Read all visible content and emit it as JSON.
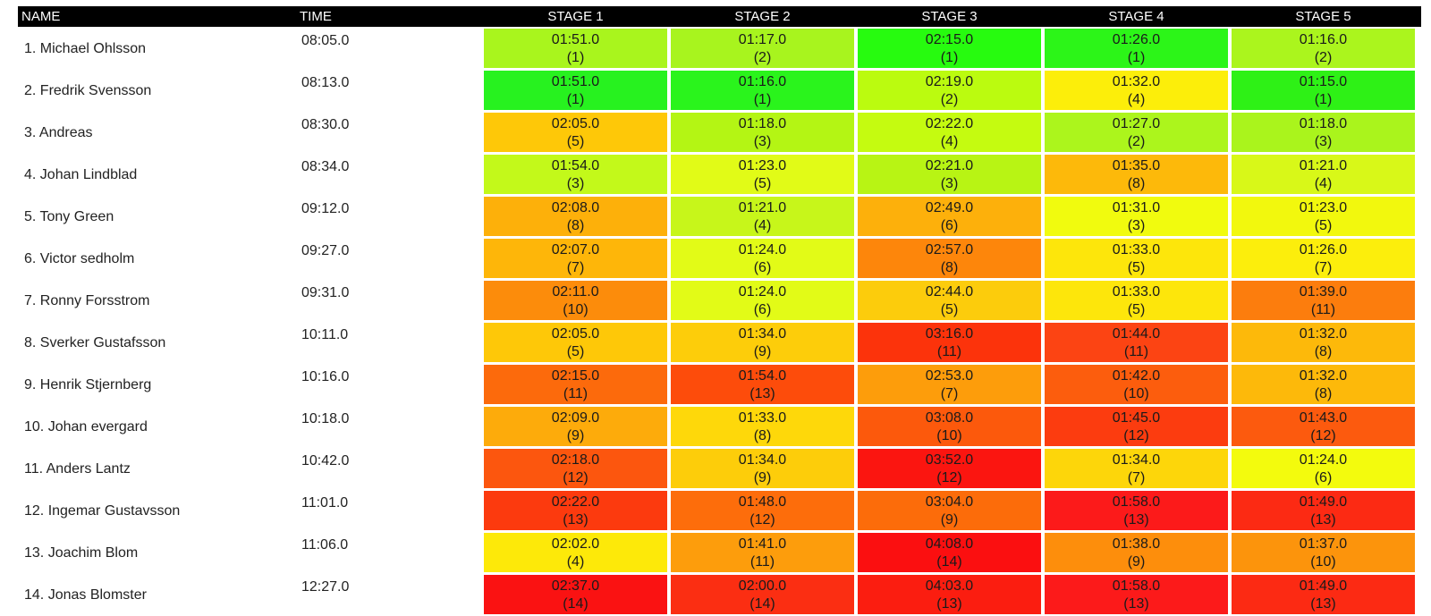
{
  "header": {
    "name": "NAME",
    "time": "TIME",
    "stages": [
      "STAGE 1",
      "STAGE 2",
      "STAGE 3",
      "STAGE 4",
      "STAGE 5"
    ]
  },
  "rows": [
    {
      "name": "1. Michael Ohlsson",
      "time": "08:05.0",
      "stages": [
        {
          "t": "01:51.0",
          "r": "(1)",
          "c": "#a9f51d"
        },
        {
          "t": "01:17.0",
          "r": "(2)",
          "c": "#a8f41e"
        },
        {
          "t": "02:15.0",
          "r": "(1)",
          "c": "#27fb0f"
        },
        {
          "t": "01:26.0",
          "r": "(1)",
          "c": "#2cf518"
        },
        {
          "t": "01:16.0",
          "r": "(2)",
          "c": "#abf51d"
        }
      ]
    },
    {
      "name": "2. Fredrik Svensson",
      "time": "08:13.0",
      "stages": [
        {
          "t": "01:51.0",
          "r": "(1)",
          "c": "#27f21f"
        },
        {
          "t": "01:16.0",
          "r": "(1)",
          "c": "#2af41c"
        },
        {
          "t": "02:19.0",
          "r": "(2)",
          "c": "#bbfb0f"
        },
        {
          "t": "01:32.0",
          "r": "(4)",
          "c": "#fcee0a"
        },
        {
          "t": "01:15.0",
          "r": "(1)",
          "c": "#2ef116"
        }
      ]
    },
    {
      "name": "3. Andreas",
      "time": "08:30.0",
      "stages": [
        {
          "t": "02:05.0",
          "r": "(5)",
          "c": "#fec808"
        },
        {
          "t": "01:18.0",
          "r": "(3)",
          "c": "#b4f514"
        },
        {
          "t": "02:22.0",
          "r": "(4)",
          "c": "#c5fb10"
        },
        {
          "t": "01:27.0",
          "r": "(2)",
          "c": "#acf51c"
        },
        {
          "t": "01:18.0",
          "r": "(3)",
          "c": "#aaf41c"
        }
      ]
    },
    {
      "name": "4. Johan Lindblad",
      "time": "08:34.0",
      "stages": [
        {
          "t": "01:54.0",
          "r": "(3)",
          "c": "#c3f91a"
        },
        {
          "t": "01:23.0",
          "r": "(5)",
          "c": "#e1fb17"
        },
        {
          "t": "02:21.0",
          "r": "(3)",
          "c": "#b8f414"
        },
        {
          "t": "01:35.0",
          "r": "(8)",
          "c": "#fdb90a"
        },
        {
          "t": "01:21.0",
          "r": "(4)",
          "c": "#d8f818"
        }
      ]
    },
    {
      "name": "5. Tony Green",
      "time": "09:12.0",
      "stages": [
        {
          "t": "02:08.0",
          "r": "(8)",
          "c": "#fdb00a"
        },
        {
          "t": "01:21.0",
          "r": "(4)",
          "c": "#c7f61a"
        },
        {
          "t": "02:49.0",
          "r": "(6)",
          "c": "#fdb00b"
        },
        {
          "t": "01:31.0",
          "r": "(3)",
          "c": "#f1fb0e"
        },
        {
          "t": "01:23.0",
          "r": "(5)",
          "c": "#f2f80d"
        }
      ]
    },
    {
      "name": "6. Victor sedholm",
      "time": "09:27.0",
      "stages": [
        {
          "t": "02:07.0",
          "r": "(7)",
          "c": "#feb609"
        },
        {
          "t": "01:24.0",
          "r": "(6)",
          "c": "#e2fb17"
        },
        {
          "t": "02:57.0",
          "r": "(8)",
          "c": "#fd860b"
        },
        {
          "t": "01:33.0",
          "r": "(5)",
          "c": "#fde60b"
        },
        {
          "t": "01:26.0",
          "r": "(7)",
          "c": "#fcee0c"
        }
      ]
    },
    {
      "name": "7. Ronny Forsstrom",
      "time": "09:31.0",
      "stages": [
        {
          "t": "02:11.0",
          "r": "(10)",
          "c": "#fc8c0b"
        },
        {
          "t": "01:24.0",
          "r": "(6)",
          "c": "#e2fb17"
        },
        {
          "t": "02:44.0",
          "r": "(5)",
          "c": "#fccc0c"
        },
        {
          "t": "01:33.0",
          "r": "(5)",
          "c": "#fde60b"
        },
        {
          "t": "01:39.0",
          "r": "(11)",
          "c": "#fc7d0d"
        }
      ]
    },
    {
      "name": "8. Sverker Gustafsson",
      "time": "10:11.0",
      "stages": [
        {
          "t": "02:05.0",
          "r": "(5)",
          "c": "#fec808"
        },
        {
          "t": "01:34.0",
          "r": "(9)",
          "c": "#fdcd0a"
        },
        {
          "t": "03:16.0",
          "r": "(11)",
          "c": "#fc330b"
        },
        {
          "t": "01:44.0",
          "r": "(11)",
          "c": "#fc4413"
        },
        {
          "t": "01:32.0",
          "r": "(8)",
          "c": "#fdb90a"
        }
      ]
    },
    {
      "name": "9. Henrik Stjernberg",
      "time": "10:16.0",
      "stages": [
        {
          "t": "02:15.0",
          "r": "(11)",
          "c": "#fc6a0c"
        },
        {
          "t": "01:54.0",
          "r": "(13)",
          "c": "#fd4c0b"
        },
        {
          "t": "02:53.0",
          "r": "(7)",
          "c": "#fd9d0b"
        },
        {
          "t": "01:42.0",
          "r": "(10)",
          "c": "#fc5d0d"
        },
        {
          "t": "01:32.0",
          "r": "(8)",
          "c": "#fdb90a"
        }
      ]
    },
    {
      "name": "10. Johan evergard",
      "time": "10:18.0",
      "stages": [
        {
          "t": "02:09.0",
          "r": "(9)",
          "c": "#fdab0b"
        },
        {
          "t": "01:33.0",
          "r": "(8)",
          "c": "#fed80a"
        },
        {
          "t": "03:08.0",
          "r": "(10)",
          "c": "#fc590c"
        },
        {
          "t": "01:45.0",
          "r": "(12)",
          "c": "#fc3c0f"
        },
        {
          "t": "01:43.0",
          "r": "(12)",
          "c": "#fc5a0e"
        }
      ]
    },
    {
      "name": "11. Anders Lantz",
      "time": "10:42.0",
      "stages": [
        {
          "t": "02:18.0",
          "r": "(12)",
          "c": "#fc560e"
        },
        {
          "t": "01:34.0",
          "r": "(9)",
          "c": "#fdcd0a"
        },
        {
          "t": "03:52.0",
          "r": "(12)",
          "c": "#fb1510"
        },
        {
          "t": "01:34.0",
          "r": "(7)",
          "c": "#fdd60a"
        },
        {
          "t": "01:24.0",
          "r": "(6)",
          "c": "#f3fb0d"
        }
      ]
    },
    {
      "name": "12. Ingemar Gustavsson",
      "time": "11:01.0",
      "stages": [
        {
          "t": "02:22.0",
          "r": "(13)",
          "c": "#fc3a0e"
        },
        {
          "t": "01:48.0",
          "r": "(12)",
          "c": "#fd6d0b"
        },
        {
          "t": "03:04.0",
          "r": "(9)",
          "c": "#fc6c0a"
        },
        {
          "t": "01:58.0",
          "r": "(13)",
          "c": "#fc1a1a"
        },
        {
          "t": "01:49.0",
          "r": "(13)",
          "c": "#fc2a13"
        }
      ]
    },
    {
      "name": "13. Joachim Blom",
      "time": "11:06.0",
      "stages": [
        {
          "t": "02:02.0",
          "r": "(4)",
          "c": "#fde909"
        },
        {
          "t": "01:41.0",
          "r": "(11)",
          "c": "#fd9d0c"
        },
        {
          "t": "04:08.0",
          "r": "(14)",
          "c": "#fb0f10"
        },
        {
          "t": "01:38.0",
          "r": "(9)",
          "c": "#fd8e0c"
        },
        {
          "t": "01:37.0",
          "r": "(10)",
          "c": "#fc940c"
        }
      ]
    },
    {
      "name": "14. Jonas Blomster",
      "time": "12:27.0",
      "stages": [
        {
          "t": "02:37.0",
          "r": "(14)",
          "c": "#fa1212"
        },
        {
          "t": "02:00.0",
          "r": "(14)",
          "c": "#fb2e12"
        },
        {
          "t": "04:03.0",
          "r": "(13)",
          "c": "#fb1d10"
        },
        {
          "t": "01:58.0",
          "r": "(13)",
          "c": "#fc1a1a"
        },
        {
          "t": "01:49.0",
          "r": "(13)",
          "c": "#fc2a13"
        }
      ]
    }
  ]
}
